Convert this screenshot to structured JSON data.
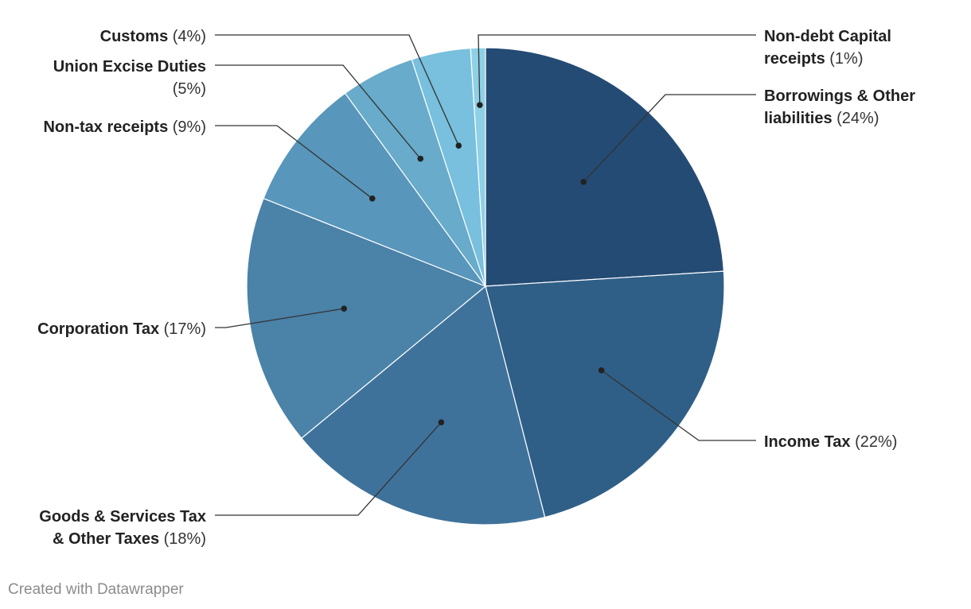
{
  "chart_data": {
    "type": "pie",
    "title": "",
    "slices": [
      {
        "name": "Borrowings & Other liabilities",
        "value": 24,
        "pct_label": "(24%)",
        "color": "#244b74"
      },
      {
        "name": "Income Tax",
        "value": 22,
        "pct_label": "(22%)",
        "color": "#2f5f87"
      },
      {
        "name": "Goods & Services Tax & Other Taxes",
        "value": 18,
        "pct_label": "(18%)",
        "color": "#3f729b"
      },
      {
        "name": "Corporation Tax",
        "value": 17,
        "pct_label": "(17%)",
        "color": "#4a82a8"
      },
      {
        "name": "Non-tax receipts",
        "value": 9,
        "pct_label": "(9%)",
        "color": "#5896bb"
      },
      {
        "name": "Union Excise Duties",
        "value": 5,
        "pct_label": "(5%)",
        "color": "#68abca"
      },
      {
        "name": "Customs",
        "value": 4,
        "pct_label": "(4%)",
        "color": "#78c0dd"
      },
      {
        "name": "Non-debt Capital receipts",
        "value": 1,
        "pct_label": "(1%)",
        "color": "#8ed0e6"
      }
    ]
  },
  "footer": {
    "credit": "Created with Datawrapper"
  }
}
